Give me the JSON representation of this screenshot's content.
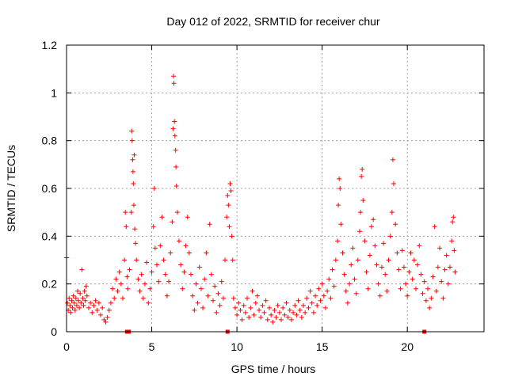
{
  "chart_data": {
    "type": "scatter",
    "title": "Day 012 of 2022, SRMTID for receiver chur",
    "xlabel": "GPS time / hours",
    "ylabel": "SRMTID / TECUs",
    "xlim": [
      0,
      24.5
    ],
    "ylim": [
      0,
      1.2
    ],
    "xticks": [
      0,
      5,
      10,
      15,
      20
    ],
    "xtick_labels": [
      "0",
      "5",
      "10",
      "15",
      "20"
    ],
    "yticks": [
      0,
      0.2,
      0.4,
      0.6,
      0.8,
      1.0,
      1.2
    ],
    "ytick_labels": [
      "0",
      "0.2",
      "0.4",
      "0.6",
      "0.8",
      "1",
      "1.2"
    ],
    "grid": true,
    "marker": "+",
    "color": "#ff0000",
    "series": [
      {
        "name": "SRMTID",
        "points": [
          [
            0.0,
            0.31
          ],
          [
            0.05,
            0.12
          ],
          [
            0.1,
            0.09
          ],
          [
            0.15,
            0.14
          ],
          [
            0.2,
            0.11
          ],
          [
            0.25,
            0.08
          ],
          [
            0.3,
            0.13
          ],
          [
            0.35,
            0.1
          ],
          [
            0.4,
            0.15
          ],
          [
            0.45,
            0.12
          ],
          [
            0.5,
            0.09
          ],
          [
            0.55,
            0.14
          ],
          [
            0.6,
            0.11
          ],
          [
            0.65,
            0.17
          ],
          [
            0.7,
            0.13
          ],
          [
            0.75,
            0.1
          ],
          [
            0.8,
            0.16
          ],
          [
            0.85,
            0.12
          ],
          [
            0.9,
            0.26
          ],
          [
            0.95,
            0.14
          ],
          [
            1.0,
            0.11
          ],
          [
            1.05,
            0.17
          ],
          [
            1.1,
            0.13
          ],
          [
            1.15,
            0.19
          ],
          [
            1.2,
            0.15
          ],
          [
            1.3,
            0.1
          ],
          [
            1.4,
            0.12
          ],
          [
            1.5,
            0.08
          ],
          [
            1.6,
            0.11
          ],
          [
            1.7,
            0.13
          ],
          [
            1.8,
            0.09
          ],
          [
            1.9,
            0.12
          ],
          [
            2.0,
            0.07
          ],
          [
            2.1,
            0.1
          ],
          [
            2.2,
            0.05
          ],
          [
            2.3,
            0.04
          ],
          [
            2.4,
            0.06
          ],
          [
            2.5,
            0.09
          ],
          [
            2.6,
            0.12
          ],
          [
            2.7,
            0.18
          ],
          [
            2.8,
            0.14
          ],
          [
            2.9,
            0.22
          ],
          [
            3.0,
            0.17
          ],
          [
            3.1,
            0.25
          ],
          [
            3.2,
            0.2
          ],
          [
            3.3,
            0.14
          ],
          [
            3.4,
            0.3
          ],
          [
            3.45,
            0.5
          ],
          [
            3.5,
            0.44
          ],
          [
            3.55,
            0.23
          ],
          [
            3.6,
            0.18
          ],
          [
            3.7,
            0.26
          ],
          [
            3.8,
            0.5
          ],
          [
            3.82,
            0.84
          ],
          [
            3.85,
            0.8
          ],
          [
            3.88,
            0.72
          ],
          [
            3.9,
            0.67
          ],
          [
            3.92,
            0.62
          ],
          [
            3.95,
            0.53
          ],
          [
            3.97,
            0.74
          ],
          [
            4.0,
            0.43
          ],
          [
            4.05,
            0.37
          ],
          [
            4.1,
            0.3
          ],
          [
            4.2,
            0.22
          ],
          [
            4.3,
            0.17
          ],
          [
            4.4,
            0.24
          ],
          [
            4.5,
            0.14
          ],
          [
            4.6,
            0.2
          ],
          [
            4.7,
            0.29
          ],
          [
            4.8,
            0.12
          ],
          [
            4.9,
            0.18
          ],
          [
            5.0,
            0.25
          ],
          [
            5.1,
            0.44
          ],
          [
            5.15,
            0.6
          ],
          [
            5.2,
            0.35
          ],
          [
            5.3,
            0.28
          ],
          [
            5.4,
            0.21
          ],
          [
            5.5,
            0.36
          ],
          [
            5.6,
            0.48
          ],
          [
            5.7,
            0.3
          ],
          [
            5.8,
            0.24
          ],
          [
            5.9,
            0.15
          ],
          [
            6.0,
            0.21
          ],
          [
            6.1,
            0.33
          ],
          [
            6.2,
            0.46
          ],
          [
            6.25,
            0.85
          ],
          [
            6.28,
            1.07
          ],
          [
            6.3,
            1.04
          ],
          [
            6.33,
            0.88
          ],
          [
            6.36,
            0.82
          ],
          [
            6.4,
            0.76
          ],
          [
            6.42,
            0.69
          ],
          [
            6.45,
            0.61
          ],
          [
            6.5,
            0.5
          ],
          [
            6.6,
            0.38
          ],
          [
            6.7,
            0.28
          ],
          [
            6.8,
            0.18
          ],
          [
            6.9,
            0.25
          ],
          [
            7.0,
            0.36
          ],
          [
            7.1,
            0.48
          ],
          [
            7.2,
            0.33
          ],
          [
            7.3,
            0.24
          ],
          [
            7.4,
            0.15
          ],
          [
            7.5,
            0.09
          ],
          [
            7.6,
            0.2
          ],
          [
            7.7,
            0.12
          ],
          [
            7.8,
            0.27
          ],
          [
            7.9,
            0.18
          ],
          [
            8.0,
            0.1
          ],
          [
            8.1,
            0.22
          ],
          [
            8.2,
            0.33
          ],
          [
            8.3,
            0.15
          ],
          [
            8.4,
            0.45
          ],
          [
            8.5,
            0.24
          ],
          [
            8.6,
            0.13
          ],
          [
            8.7,
            0.19
          ],
          [
            8.8,
            0.08
          ],
          [
            8.9,
            0.16
          ],
          [
            9.0,
            0.11
          ],
          [
            9.1,
            0.21
          ],
          [
            9.2,
            0.14
          ],
          [
            9.3,
            0.3
          ],
          [
            9.4,
            0.48
          ],
          [
            9.45,
            0.57
          ],
          [
            9.5,
            0.53
          ],
          [
            9.55,
            0.44
          ],
          [
            9.6,
            0.62
          ],
          [
            9.65,
            0.59
          ],
          [
            9.7,
            0.4
          ],
          [
            9.75,
            0.3
          ],
          [
            9.8,
            0.14
          ],
          [
            9.9,
            0.1
          ],
          [
            10.0,
            0.07
          ],
          [
            10.1,
            0.12
          ],
          [
            10.2,
            0.09
          ],
          [
            10.3,
            0.05
          ],
          [
            10.4,
            0.11
          ],
          [
            10.5,
            0.08
          ],
          [
            10.6,
            0.14
          ],
          [
            10.7,
            0.06
          ],
          [
            10.8,
            0.1
          ],
          [
            10.9,
            0.17
          ],
          [
            11.0,
            0.07
          ],
          [
            11.1,
            0.12
          ],
          [
            11.2,
            0.15
          ],
          [
            11.3,
            0.09
          ],
          [
            11.4,
            0.06
          ],
          [
            11.5,
            0.11
          ],
          [
            11.6,
            0.08
          ],
          [
            11.7,
            0.13
          ],
          [
            11.8,
            0.05
          ],
          [
            11.9,
            0.1
          ],
          [
            12.0,
            0.07
          ],
          [
            12.1,
            0.04
          ],
          [
            12.2,
            0.09
          ],
          [
            12.3,
            0.06
          ],
          [
            12.4,
            0.11
          ],
          [
            12.5,
            0.08
          ],
          [
            12.6,
            0.05
          ],
          [
            12.7,
            0.1
          ],
          [
            12.8,
            0.07
          ],
          [
            12.9,
            0.12
          ],
          [
            13.0,
            0.06
          ],
          [
            13.1,
            0.09
          ],
          [
            13.2,
            0.05
          ],
          [
            13.3,
            0.08
          ],
          [
            13.4,
            0.11
          ],
          [
            13.5,
            0.07
          ],
          [
            13.6,
            0.13
          ],
          [
            13.7,
            0.09
          ],
          [
            13.8,
            0.06
          ],
          [
            13.9,
            0.11
          ],
          [
            14.0,
            0.08
          ],
          [
            14.1,
            0.14
          ],
          [
            14.2,
            0.1
          ],
          [
            14.3,
            0.17
          ],
          [
            14.4,
            0.12
          ],
          [
            14.5,
            0.08
          ],
          [
            14.6,
            0.15
          ],
          [
            14.7,
            0.11
          ],
          [
            14.8,
            0.18
          ],
          [
            14.9,
            0.13
          ],
          [
            15.0,
            0.2
          ],
          [
            15.1,
            0.15
          ],
          [
            15.2,
            0.1
          ],
          [
            15.3,
            0.17
          ],
          [
            15.4,
            0.22
          ],
          [
            15.5,
            0.14
          ],
          [
            15.6,
            0.26
          ],
          [
            15.7,
            0.19
          ],
          [
            15.8,
            0.3
          ],
          [
            15.9,
            0.38
          ],
          [
            15.95,
            0.53
          ],
          [
            16.0,
            0.64
          ],
          [
            16.05,
            0.6
          ],
          [
            16.1,
            0.45
          ],
          [
            16.2,
            0.33
          ],
          [
            16.3,
            0.24
          ],
          [
            16.4,
            0.17
          ],
          [
            16.5,
            0.12
          ],
          [
            16.6,
            0.2
          ],
          [
            16.7,
            0.28
          ],
          [
            16.8,
            0.35
          ],
          [
            16.9,
            0.22
          ],
          [
            17.0,
            0.16
          ],
          [
            17.1,
            0.3
          ],
          [
            17.2,
            0.42
          ],
          [
            17.25,
            0.5
          ],
          [
            17.3,
            0.65
          ],
          [
            17.35,
            0.68
          ],
          [
            17.4,
            0.55
          ],
          [
            17.5,
            0.38
          ],
          [
            17.6,
            0.25
          ],
          [
            17.7,
            0.18
          ],
          [
            17.8,
            0.32
          ],
          [
            17.9,
            0.44
          ],
          [
            18.0,
            0.47
          ],
          [
            18.1,
            0.36
          ],
          [
            18.2,
            0.28
          ],
          [
            18.3,
            0.2
          ],
          [
            18.4,
            0.15
          ],
          [
            18.5,
            0.27
          ],
          [
            18.6,
            0.37
          ],
          [
            18.7,
            0.24
          ],
          [
            18.8,
            0.17
          ],
          [
            18.9,
            0.3
          ],
          [
            19.0,
            0.4
          ],
          [
            19.1,
            0.5
          ],
          [
            19.15,
            0.72
          ],
          [
            19.2,
            0.62
          ],
          [
            19.3,
            0.45
          ],
          [
            19.4,
            0.33
          ],
          [
            19.5,
            0.26
          ],
          [
            19.6,
            0.18
          ],
          [
            19.7,
            0.34
          ],
          [
            19.8,
            0.27
          ],
          [
            19.9,
            0.2
          ],
          [
            20.0,
            0.15
          ],
          [
            20.1,
            0.25
          ],
          [
            20.2,
            0.33
          ],
          [
            20.3,
            0.22
          ],
          [
            20.4,
            0.3
          ],
          [
            20.5,
            0.18
          ],
          [
            20.6,
            0.28
          ],
          [
            20.7,
            0.36
          ],
          [
            20.8,
            0.24
          ],
          [
            20.9,
            0.16
          ],
          [
            21.0,
            0.21
          ],
          [
            21.1,
            0.13
          ],
          [
            21.2,
            0.18
          ],
          [
            21.3,
            0.1
          ],
          [
            21.4,
            0.14
          ],
          [
            21.5,
            0.23
          ],
          [
            21.6,
            0.44
          ],
          [
            21.7,
            0.17
          ],
          [
            21.8,
            0.27
          ],
          [
            21.9,
            0.35
          ],
          [
            22.0,
            0.21
          ],
          [
            22.1,
            0.14
          ],
          [
            22.2,
            0.26
          ],
          [
            22.3,
            0.32
          ],
          [
            22.4,
            0.2
          ],
          [
            22.5,
            0.27
          ],
          [
            22.6,
            0.38
          ],
          [
            22.65,
            0.46
          ],
          [
            22.7,
            0.48
          ],
          [
            22.75,
            0.34
          ],
          [
            22.8,
            0.25
          ]
        ]
      }
    ],
    "gap_markers": [
      3.55,
      3.65,
      9.45,
      21.0
    ]
  }
}
